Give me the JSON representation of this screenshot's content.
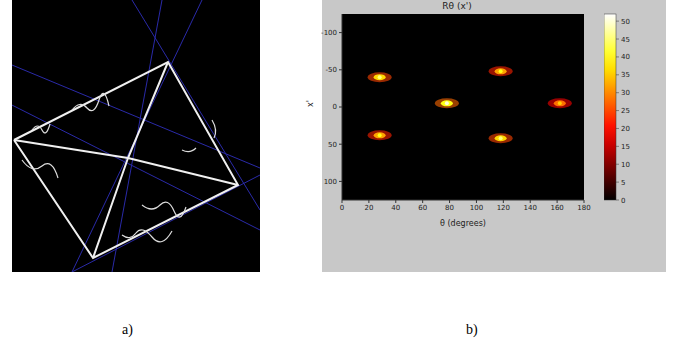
{
  "figure": {
    "panel_labels": [
      "a)",
      "b)"
    ]
  },
  "chart_data": {
    "type": "heatmap",
    "title": "Rθ (x')",
    "x_label": "θ (degrees)",
    "y_label": "x'",
    "xlim": [
      0,
      180
    ],
    "xticks": [
      0,
      20,
      40,
      60,
      80,
      100,
      120,
      140,
      160,
      180
    ],
    "ylim": [
      -125,
      125
    ],
    "yticks": [
      -100,
      -50,
      0,
      50,
      100
    ],
    "cells": [
      {
        "theta": 28,
        "rho": -40,
        "value": 45
      },
      {
        "theta": 78,
        "rho": -5,
        "value": 50
      },
      {
        "theta": 118,
        "rho": -48,
        "value": 40
      },
      {
        "theta": 162,
        "rho": -5,
        "value": 35
      },
      {
        "theta": 28,
        "rho": 38,
        "value": 40
      },
      {
        "theta": 118,
        "rho": 42,
        "value": 45
      }
    ],
    "colorbar": {
      "range": [
        0,
        52
      ],
      "ticks": [
        0,
        5,
        10,
        15,
        20,
        25,
        30,
        35,
        40,
        45,
        50
      ]
    }
  }
}
